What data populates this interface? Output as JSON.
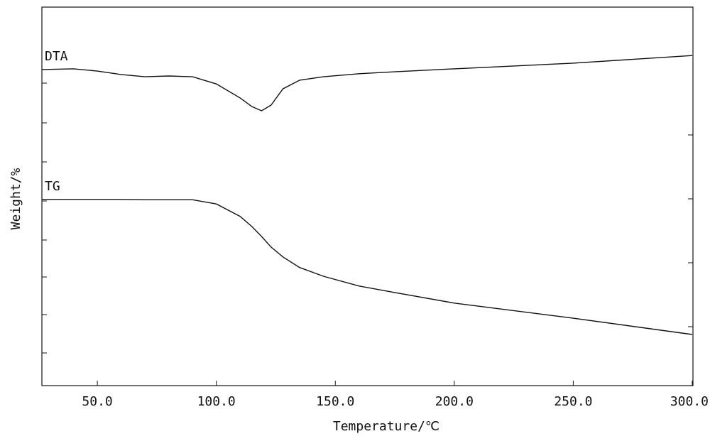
{
  "chart_data": {
    "type": "line",
    "x_label": "Temperature/℃",
    "y_label": "Weight/%",
    "x": [
      26.7,
      40,
      50,
      60,
      70,
      80,
      90,
      100,
      110,
      115,
      119,
      123,
      128,
      135,
      145,
      160,
      175,
      200,
      250,
      300
    ],
    "series": [
      {
        "name": "DTA",
        "color": "#111111",
        "values": [
          83.5,
          83.7,
          83.1,
          82.2,
          81.6,
          81.8,
          81.6,
          79.7,
          76.0,
          73.7,
          72.6,
          74.1,
          78.4,
          80.7,
          81.6,
          82.4,
          82.9,
          83.7,
          85.2,
          87.2
        ]
      },
      {
        "name": "TG",
        "color": "#111111",
        "values": [
          49.2,
          49.2,
          49.2,
          49.2,
          49.1,
          49.1,
          49.1,
          48.0,
          44.7,
          42.0,
          39.4,
          36.6,
          34.0,
          31.2,
          28.9,
          26.3,
          24.6,
          21.8,
          17.8,
          13.5
        ]
      }
    ],
    "xlim": [
      26.7,
      300.3
    ],
    "ylim": [
      0,
      100
    ],
    "xticks": [
      {
        "value": 50,
        "label": "50.0"
      },
      {
        "value": 100,
        "label": "100.0"
      },
      {
        "value": 150,
        "label": "150.0"
      },
      {
        "value": 200,
        "label": "200.0"
      },
      {
        "value": 250,
        "label": "250.0"
      },
      {
        "value": 300,
        "label": "300.0"
      }
    ],
    "grid": false
  }
}
